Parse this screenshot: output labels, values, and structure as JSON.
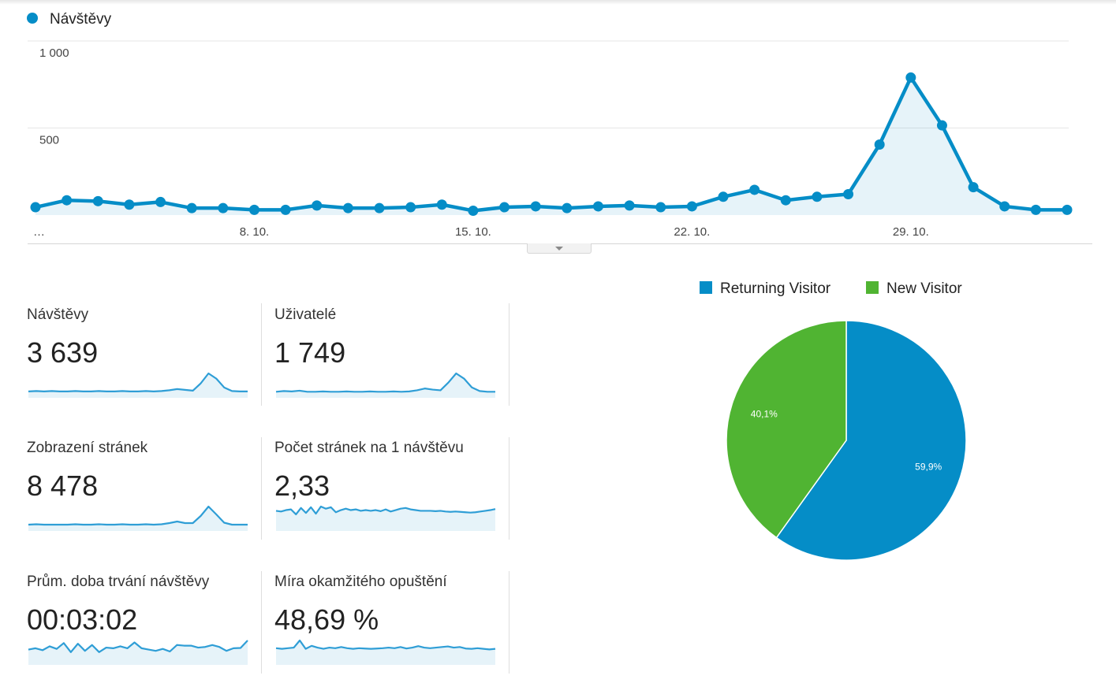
{
  "chart_data": [
    {
      "type": "area",
      "series": [
        {
          "name": "Návštěvy",
          "color": "#058dc7",
          "values": [
            45,
            85,
            80,
            60,
            75,
            40,
            40,
            30,
            30,
            55,
            40,
            40,
            45,
            60,
            25,
            45,
            50,
            40,
            50,
            55,
            45,
            50,
            105,
            145,
            85,
            105,
            120,
            405,
            790,
            515,
            160,
            50,
            30,
            30
          ]
        }
      ],
      "x_ticks": [
        "…",
        "8. 10.",
        "15. 10.",
        "22. 10.",
        "29. 10."
      ],
      "y_ticks": [
        "1 000",
        "500"
      ],
      "ylim": [
        0,
        1000
      ],
      "grid": true,
      "legend": "top-left"
    },
    {
      "type": "pie",
      "labels": [
        "Returning Visitor",
        "New Visitor"
      ],
      "values": [
        59.9,
        40.1
      ],
      "value_labels": [
        "59,9%",
        "40,1%"
      ],
      "colors": [
        "#058dc7",
        "#50b432"
      ],
      "legend": "top"
    }
  ],
  "metrics": [
    {
      "label": "Návštěvy",
      "value": "3 639",
      "spark": [
        10,
        11,
        10,
        11,
        10,
        10,
        11,
        10,
        10,
        11,
        10,
        10,
        11,
        10,
        10,
        11,
        10,
        11,
        13,
        16,
        14,
        12,
        30,
        55,
        42,
        20,
        11,
        10,
        10
      ]
    },
    {
      "label": "Uživatelé",
      "value": "1 749",
      "spark": [
        10,
        12,
        11,
        13,
        10,
        10,
        11,
        10,
        10,
        11,
        10,
        10,
        11,
        10,
        10,
        11,
        10,
        11,
        14,
        19,
        16,
        14,
        35,
        60,
        46,
        22,
        12,
        10,
        10
      ]
    },
    {
      "label": "Zobrazení stránek",
      "value": "8 478",
      "spark": [
        10,
        11,
        10,
        10,
        10,
        10,
        11,
        10,
        10,
        11,
        10,
        10,
        11,
        10,
        10,
        11,
        10,
        11,
        14,
        18,
        14,
        14,
        32,
        56,
        36,
        15,
        10,
        10,
        10
      ]
    },
    {
      "label": "Počet stránek na 1 návštěvu",
      "value": "2,33",
      "spark": [
        50,
        48,
        52,
        54,
        40,
        58,
        44,
        60,
        42,
        62,
        56,
        60,
        46,
        52,
        56,
        52,
        54,
        50,
        52,
        50,
        52,
        49,
        54,
        48,
        52,
        56,
        58,
        54,
        52,
        50,
        50,
        50,
        49,
        50,
        48,
        47,
        48,
        47,
        46,
        45,
        46,
        48,
        50,
        52,
        55
      ]
    },
    {
      "label": "Prům. doba trvání návštěvy",
      "value": "00:03:02",
      "spark": [
        40,
        44,
        38,
        50,
        42,
        60,
        32,
        58,
        36,
        54,
        32,
        46,
        44,
        50,
        44,
        62,
        44,
        40,
        36,
        42,
        34,
        54,
        52,
        52,
        46,
        48,
        54,
        48,
        36,
        44,
        45,
        68
      ]
    },
    {
      "label": "Míra okamžitého opuštění",
      "value": "48,69 %",
      "spark": [
        48,
        46,
        48,
        50,
        74,
        46,
        56,
        50,
        46,
        50,
        48,
        52,
        48,
        46,
        48,
        47,
        46,
        47,
        48,
        50,
        48,
        52,
        47,
        50,
        55,
        50,
        48,
        50,
        52,
        54,
        50,
        52,
        47,
        46,
        48,
        46,
        44,
        46
      ]
    }
  ]
}
